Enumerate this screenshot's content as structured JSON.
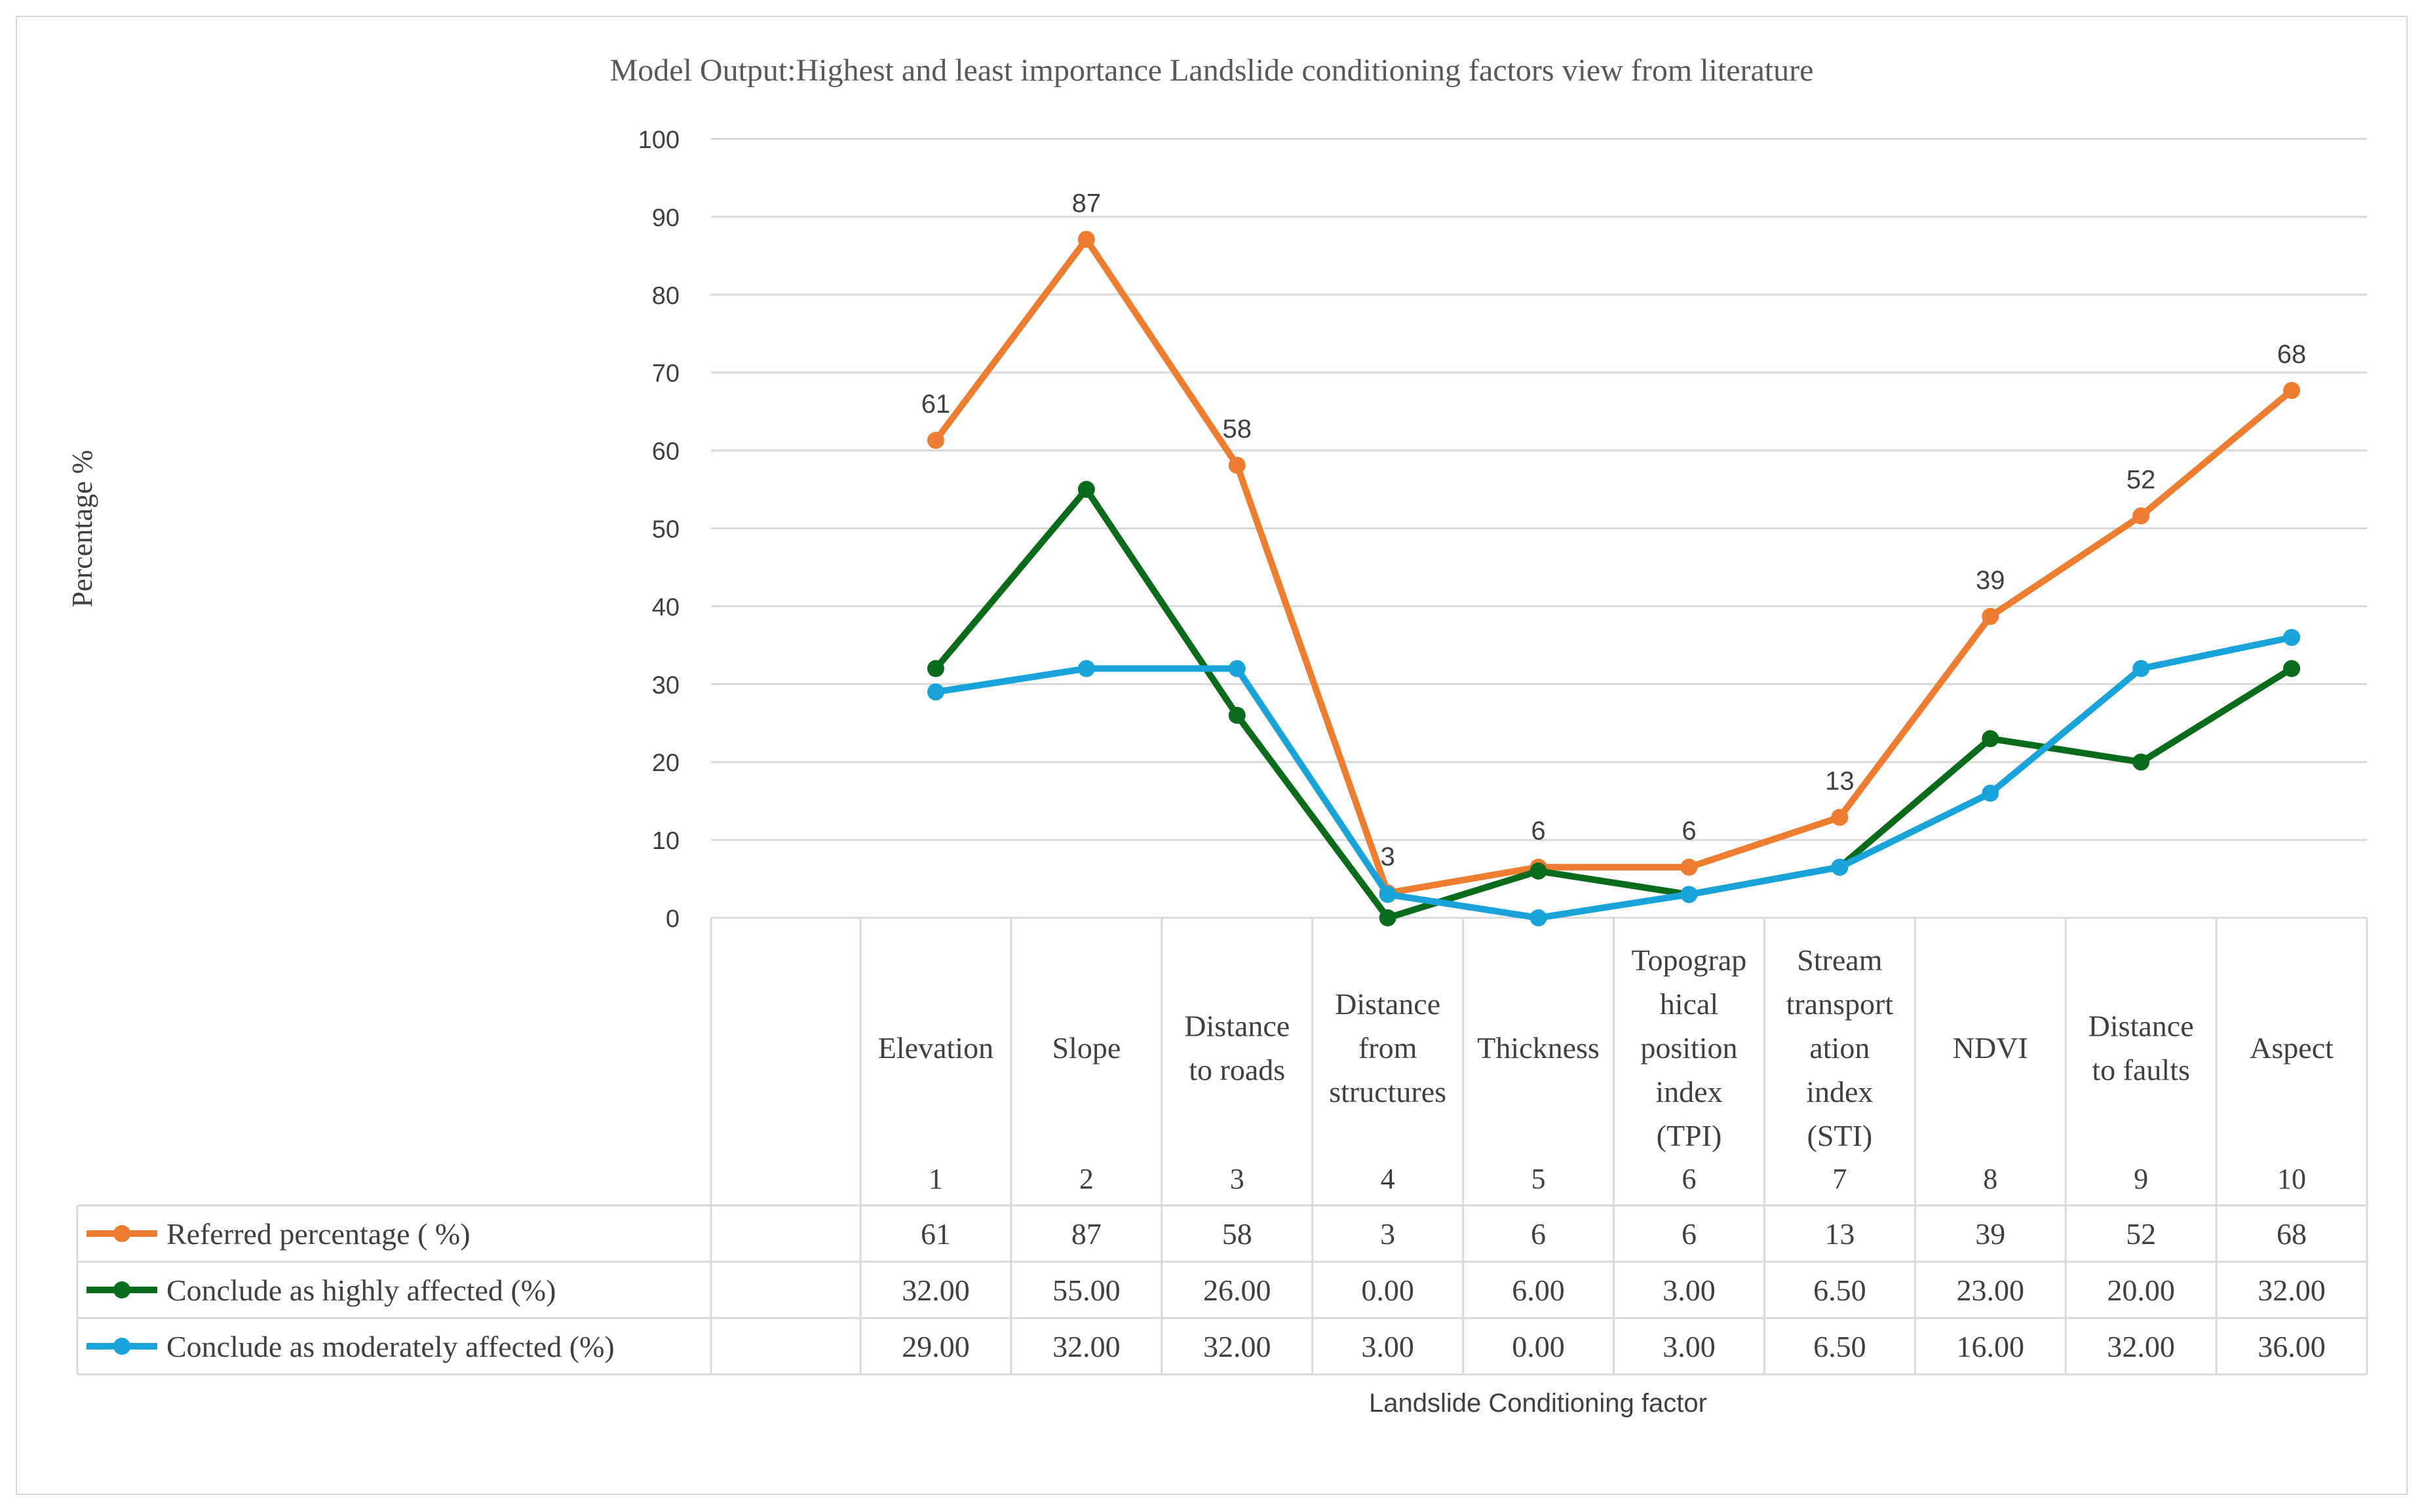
{
  "chart_data": {
    "type": "line",
    "title": "Model Output:Highest and least importance Landslide conditioning factors view   from literature",
    "ylabel": "Percentage %",
    "xlabel": "Landslide Conditioning factor",
    "ylim": [
      0,
      100
    ],
    "yticks": [
      "0",
      "10",
      "20",
      "30",
      "40",
      "50",
      "60",
      "70",
      "80",
      "90",
      "100"
    ],
    "grid": true,
    "legend": "data-table",
    "categories": [
      "Elevation",
      "Slope",
      "Distance to roads",
      "Distance from structures",
      "Thickness",
      "Topographical position index (TPI)",
      "Stream transportation index (STI)",
      "NDVI",
      "Distance to faults",
      "Aspect"
    ],
    "category_lines": [
      [
        "Elevation"
      ],
      [
        "Slope"
      ],
      [
        "Distance",
        "to roads"
      ],
      [
        "Distance",
        "from",
        "structures"
      ],
      [
        "Thickness"
      ],
      [
        "Topograp",
        "hical",
        "position",
        "index",
        "(TPI)"
      ],
      [
        "Stream",
        "transport",
        "ation",
        "index",
        "(STI)"
      ],
      [
        "NDVI"
      ],
      [
        "Distance",
        "to faults"
      ],
      [
        "Aspect"
      ]
    ],
    "index_labels": [
      "1",
      "2",
      "3",
      "4",
      "5",
      "6",
      "7",
      "8",
      "9",
      "10"
    ],
    "series": [
      {
        "name": "Referred  percentage ( %)",
        "color": "#ed7d31",
        "values": [
          61.3,
          87.1,
          58.1,
          3.2,
          6.5,
          6.5,
          12.9,
          38.7,
          51.6,
          67.7
        ],
        "data_labels": [
          "61",
          "87",
          "58",
          "3",
          "6",
          "6",
          "13",
          "39",
          "52",
          "68"
        ],
        "table_values": [
          "61",
          "87",
          "58",
          "3",
          "6",
          "6",
          "13",
          "39",
          "52",
          "68"
        ]
      },
      {
        "name": "Conclude as highly affected (%)",
        "color": "#0b6b1c",
        "values": [
          32,
          55,
          26,
          0,
          6,
          3,
          6.5,
          23,
          20,
          32
        ],
        "table_values": [
          "32.00",
          "55.00",
          "26.00",
          "0.00",
          "6.00",
          "3.00",
          "6.50",
          "23.00",
          "20.00",
          "32.00"
        ]
      },
      {
        "name": "Conclude as moderately affected (%)",
        "color": "#1aa3d9",
        "values": [
          29,
          32,
          32,
          3,
          0,
          3,
          6.5,
          16,
          32,
          36
        ],
        "table_values": [
          "29.00",
          "32.00",
          "32.00",
          "3.00",
          "0.00",
          "3.00",
          "6.50",
          "16.00",
          "32.00",
          "36.00"
        ]
      }
    ]
  }
}
